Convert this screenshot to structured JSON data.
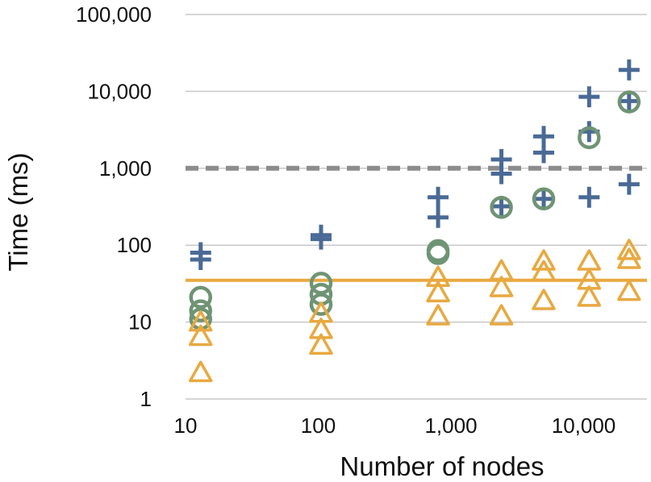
{
  "chart_data": {
    "type": "scatter",
    "title": "",
    "xlabel": "Number of nodes",
    "ylabel": "Time (ms)",
    "xscale": "log",
    "yscale": "log",
    "xlim": [
      10,
      30000
    ],
    "ylim": [
      1,
      100000
    ],
    "x_ticks": [
      10,
      100,
      1000,
      10000
    ],
    "x_tick_labels": [
      "10",
      "100",
      "1,000",
      "10,000"
    ],
    "y_ticks": [
      1,
      10,
      100,
      1000,
      10000,
      100000
    ],
    "y_tick_labels": [
      "1",
      "10",
      "100",
      "1,000",
      "10,000",
      "100,000"
    ],
    "grid": "horizontal",
    "legend": "none",
    "colors": {
      "plus": "#4a6a96",
      "circle": "#6f9474",
      "triangle": "#e8a940",
      "dashed_line": "#8c8c8c",
      "solid_line": "#e8a940",
      "grid": "#c8c8c8"
    },
    "reference_lines": [
      {
        "y": 1000,
        "style": "dashed",
        "color": "#8c8c8c"
      },
      {
        "y": 35,
        "style": "solid",
        "color": "#e8a940"
      }
    ],
    "series": [
      {
        "marker": "plus",
        "color": "#4a6a96",
        "points": [
          {
            "x": 13,
            "y": 80
          },
          {
            "x": 13,
            "y": 65
          },
          {
            "x": 105,
            "y": 135
          },
          {
            "x": 105,
            "y": 120
          },
          {
            "x": 800,
            "y": 420
          },
          {
            "x": 800,
            "y": 230
          },
          {
            "x": 2400,
            "y": 1300
          },
          {
            "x": 2400,
            "y": 850
          },
          {
            "x": 2400,
            "y": 320
          },
          {
            "x": 5000,
            "y": 2600
          },
          {
            "x": 5000,
            "y": 1600
          },
          {
            "x": 5000,
            "y": 400
          },
          {
            "x": 11000,
            "y": 8500
          },
          {
            "x": 11000,
            "y": 3000
          },
          {
            "x": 11000,
            "y": 420
          },
          {
            "x": 22000,
            "y": 19000
          },
          {
            "x": 22000,
            "y": 7500
          },
          {
            "x": 22000,
            "y": 620
          }
        ]
      },
      {
        "marker": "circle",
        "color": "#6f9474",
        "points": [
          {
            "x": 13,
            "y": 21
          },
          {
            "x": 13,
            "y": 14
          },
          {
            "x": 13,
            "y": 11
          },
          {
            "x": 105,
            "y": 32
          },
          {
            "x": 105,
            "y": 23
          },
          {
            "x": 105,
            "y": 17
          },
          {
            "x": 800,
            "y": 85
          },
          {
            "x": 800,
            "y": 78
          },
          {
            "x": 2400,
            "y": 310
          },
          {
            "x": 5000,
            "y": 400
          },
          {
            "x": 11000,
            "y": 2500
          },
          {
            "x": 22000,
            "y": 7300
          }
        ]
      },
      {
        "marker": "triangle",
        "color": "#e8a940",
        "points": [
          {
            "x": 13,
            "y": 10
          },
          {
            "x": 13,
            "y": 6.5
          },
          {
            "x": 13,
            "y": 2.2
          },
          {
            "x": 105,
            "y": 13
          },
          {
            "x": 105,
            "y": 8
          },
          {
            "x": 105,
            "y": 5
          },
          {
            "x": 800,
            "y": 38
          },
          {
            "x": 800,
            "y": 24
          },
          {
            "x": 800,
            "y": 12
          },
          {
            "x": 2400,
            "y": 46
          },
          {
            "x": 2400,
            "y": 28
          },
          {
            "x": 2400,
            "y": 12
          },
          {
            "x": 5000,
            "y": 62
          },
          {
            "x": 5000,
            "y": 45
          },
          {
            "x": 5000,
            "y": 19
          },
          {
            "x": 11000,
            "y": 62
          },
          {
            "x": 11000,
            "y": 35
          },
          {
            "x": 11000,
            "y": 21
          },
          {
            "x": 22000,
            "y": 85
          },
          {
            "x": 22000,
            "y": 65
          },
          {
            "x": 22000,
            "y": 25
          }
        ]
      }
    ]
  }
}
